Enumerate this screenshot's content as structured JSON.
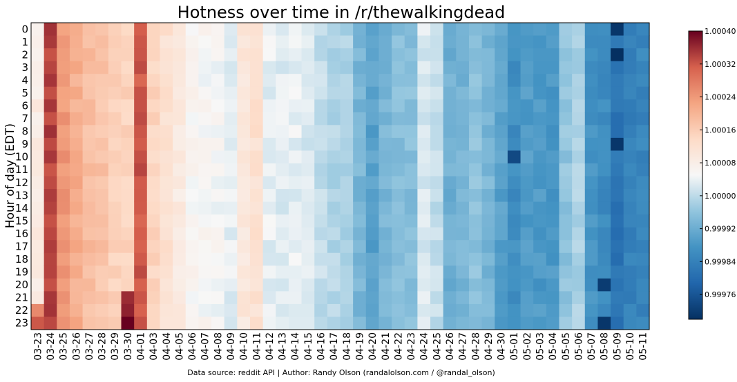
{
  "chart_data": {
    "type": "heatmap",
    "title": "Hotness over time in /r/thewalkingdead",
    "ylabel": "Hour of day (EDT)",
    "xlabel": "",
    "source": "Data source: reddit API | Author: Randy Olson (randalolson.com / @randal_olson)",
    "y_categories": [
      "0",
      "1",
      "2",
      "3",
      "4",
      "5",
      "6",
      "7",
      "8",
      "9",
      "10",
      "11",
      "12",
      "13",
      "14",
      "15",
      "16",
      "17",
      "18",
      "19",
      "20",
      "21",
      "22",
      "23"
    ],
    "x_categories": [
      "03-23",
      "03-24",
      "03-25",
      "03-26",
      "03-27",
      "03-28",
      "03-29",
      "03-30",
      "04-01",
      "04-03",
      "04-04",
      "04-05",
      "04-06",
      "04-07",
      "04-08",
      "04-09",
      "04-10",
      "04-11",
      "04-12",
      "04-13",
      "04-14",
      "04-15",
      "04-16",
      "04-17",
      "04-18",
      "04-19",
      "04-20",
      "04-21",
      "04-22",
      "04-23",
      "04-24",
      "04-25",
      "04-26",
      "04-27",
      "04-28",
      "04-29",
      "04-30",
      "05-01",
      "05-02",
      "05-03",
      "05-04",
      "05-05",
      "05-06",
      "05-07",
      "05-08",
      "05-09",
      "05-10",
      "05-11"
    ],
    "value_range": [
      0.9997,
      1.0004
    ],
    "colormap": "RdBu_r",
    "colorbar_ticks": [
      "1.00040",
      "1.00032",
      "1.00024",
      "1.00016",
      "1.00008",
      "1.00000",
      "0.99992",
      "0.99984",
      "0.99976"
    ],
    "colorbar_tick_values": [
      1.0004,
      1.00032,
      1.00024,
      1.00016,
      1.00008,
      1.0,
      0.99992,
      0.99984,
      0.99976
    ],
    "column_profile": [
      1.000085,
      1.00034,
      1.00024,
      1.00021,
      1.000185,
      1.000175,
      1.00015,
      1.00015,
      1.00032,
      1.000145,
      1.00012,
      1.00009,
      1.00006,
      1.000055,
      1.00005,
      1.00003,
      1.0001,
      1.00012,
      1.000035,
      1.00003,
      1.000035,
      1.000025,
      1.000005,
      0.99999,
      0.999985,
      0.999935,
      0.9999,
      0.999935,
      0.99995,
      0.99995,
      1.000025,
      1.000005,
      0.999925,
      0.999935,
      0.999955,
      0.999935,
      0.9999,
      0.999865,
      0.99989,
      0.999885,
      0.999885,
      0.99996,
      0.999985,
      0.999875,
      0.99986,
      0.999815,
      0.99984,
      0.99985
    ],
    "highlights": [
      {
        "col": "03-30",
        "hour": 21,
        "value": 1.00036
      },
      {
        "col": "03-30",
        "hour": 22,
        "value": 1.00037
      },
      {
        "col": "03-30",
        "hour": 23,
        "value": 1.0004
      },
      {
        "col": "03-23",
        "hour": 22,
        "value": 1.00026
      },
      {
        "col": "03-23",
        "hour": 23,
        "value": 1.00032
      },
      {
        "col": "05-09",
        "hour": 0,
        "value": 0.99971
      },
      {
        "col": "05-09",
        "hour": 2,
        "value": 0.9997
      },
      {
        "col": "05-09",
        "hour": 9,
        "value": 0.99971
      },
      {
        "col": "05-08",
        "hour": 20,
        "value": 0.99972
      },
      {
        "col": "05-08",
        "hour": 23,
        "value": 0.99971
      },
      {
        "col": "05-01",
        "hour": 10,
        "value": 0.99974
      }
    ]
  }
}
